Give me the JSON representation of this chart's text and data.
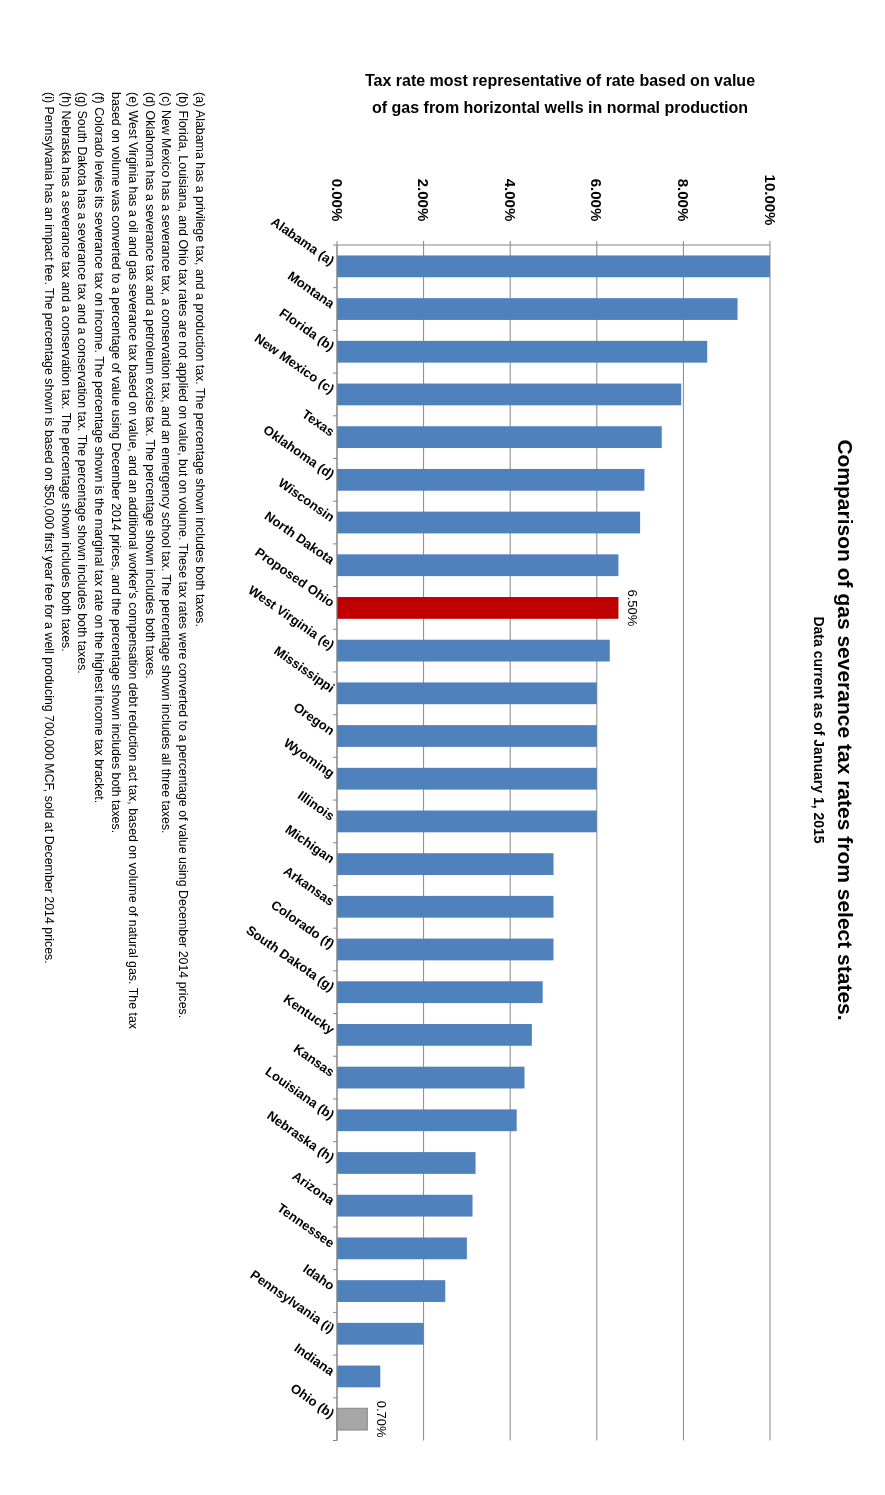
{
  "chart_data": {
    "type": "bar",
    "orientation": "horizontal",
    "title": "Comparison of gas severance tax rates from select states.",
    "subtitle": "Data current as of January 1, 2015",
    "ylabel": "Tax rate most representative of rate based on value of gas from horizontal wells in normal production",
    "categories": [
      "Alabama (a)",
      "Montana",
      "Florida (b)",
      "New Mexico (c)",
      "Texas",
      "Oklahoma (d)",
      "Wisconsin",
      "North Dakota",
      "Proposed Ohio",
      "West Virginia (e)",
      "Mississippi",
      "Oregon",
      "Wyoming",
      "Illinois",
      "Michigan",
      "Arkansas",
      "Colorado (f)",
      "South Dakota (g)",
      "Kentucky",
      "Kansas",
      "Louisiana (b)",
      "Nebraska (h)",
      "Arizona",
      "Tennessee",
      "Idaho",
      "Pennsylvania (i)",
      "Indiana",
      "Ohio (b)"
    ],
    "values": [
      10.0,
      9.25,
      8.55,
      7.95,
      7.5,
      7.1,
      7.0,
      6.5,
      6.5,
      6.3,
      6.0,
      6.0,
      6.0,
      6.0,
      5.0,
      5.0,
      5.0,
      4.75,
      4.5,
      4.33,
      4.15,
      3.2,
      3.13,
      3.0,
      2.5,
      2.0,
      1.0,
      0.7
    ],
    "colors": [
      "#4f81bd",
      "#4f81bd",
      "#4f81bd",
      "#4f81bd",
      "#4f81bd",
      "#4f81bd",
      "#4f81bd",
      "#4f81bd",
      "#c00000",
      "#4f81bd",
      "#4f81bd",
      "#4f81bd",
      "#4f81bd",
      "#4f81bd",
      "#4f81bd",
      "#4f81bd",
      "#4f81bd",
      "#4f81bd",
      "#4f81bd",
      "#4f81bd",
      "#4f81bd",
      "#4f81bd",
      "#4f81bd",
      "#4f81bd",
      "#4f81bd",
      "#4f81bd",
      "#4f81bd",
      "#a6a6a6"
    ],
    "value_labels": [
      null,
      null,
      null,
      null,
      null,
      null,
      null,
      null,
      "6.50%",
      null,
      null,
      null,
      null,
      null,
      null,
      null,
      null,
      null,
      null,
      null,
      null,
      null,
      null,
      null,
      null,
      null,
      null,
      "0.70%"
    ],
    "xlim": [
      0,
      10
    ],
    "xticks": [
      {
        "value": 0,
        "label": "0.00%"
      },
      {
        "value": 2,
        "label": "2.00%"
      },
      {
        "value": 4,
        "label": "4.00%"
      },
      {
        "value": 6,
        "label": "6.00%"
      },
      {
        "value": 8,
        "label": "8.00%"
      },
      {
        "value": 10,
        "label": "10.00%"
      }
    ],
    "grid": "x",
    "annotations": [
      "(a)  Alabama has a privilege tax, and a production tax. The percentage shown includes both taxes.",
      "(b)  Florida, Louisiana, and Ohio tax rates are not applied on value, but on volume. These tax rates were converted to a percentage of value using December 2014 prices.",
      "(c)  New Mexico has a severance tax, a conservation tax, and an emergency school tax. The percentage shown includes all three taxes.",
      "(d)  Oklahoma has a severance tax and a petroleum excise tax. The percentage shown includes both taxes.",
      "(e)  West Virginia has a oil and gas severance tax based on value, and an additional worker's compensation debt reduction act tax, based on volume of natural gas. The tax",
      "based  on volume was converted to a percentage of value using December 2014 prices, and the percentage shown includes both taxes.",
      "(f)  Colorado levies its severance tax on income. The percentage shown is the marginal tax rate on the highest income tax bracket.",
      "(g)  South Dakota has a severance tax and a conservation tax. The percentage shown includes both taxes.",
      "(h)  Nebraska has a severance tax and a conservation tax. The percentage shown includes both taxes.",
      "(i)  Pennsylvania has an impact fee. The percentage shown is based on $50,000 first year fee for a well producing 700,000 MCF, sold at December 2014 prices."
    ]
  }
}
